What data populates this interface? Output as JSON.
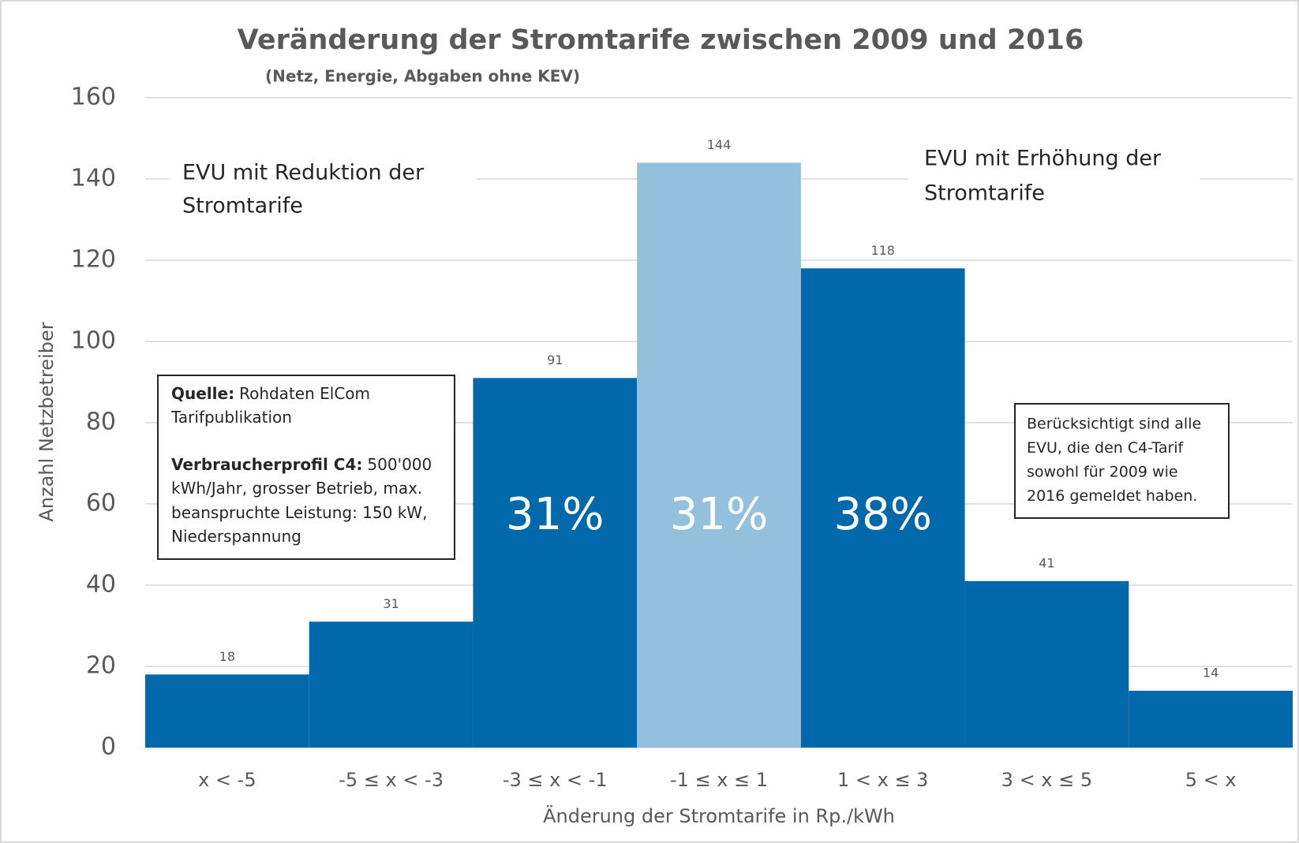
{
  "chart_data": {
    "type": "bar",
    "title": "Veränderung der Stromtarife zwischen 2009 und 2016",
    "subtitle": "(Netz, Energie, Abgaben ohne KEV)",
    "y_label": "Anzahl Netzbetreiber",
    "x_label": "Änderung der Stromtarife in Rp./kWh",
    "categories": [
      "x < -5",
      "-5 ≤ x < -3",
      "-3 ≤ x < -1",
      "-1 ≤ x ≤ 1",
      "1 < x  ≤ 3",
      "3 < x ≤ 5",
      "5 < x"
    ],
    "values": [
      18,
      31,
      91,
      144,
      118,
      41,
      14
    ],
    "colors": [
      "#0068ab",
      "#0068ab",
      "#0068ab",
      "#93c0dc",
      "#0068ab",
      "#0068ab",
      "#0068ab"
    ],
    "ylim": [
      0,
      160
    ],
    "yticks": [
      0,
      20,
      40,
      60,
      80,
      100,
      120,
      140,
      160
    ],
    "grid": true,
    "share_labels": [
      {
        "category": 2,
        "text": "31%"
      },
      {
        "category": 3,
        "text": "31%"
      },
      {
        "category": 4,
        "text": "38%"
      }
    ],
    "annotations": {
      "reduction": [
        "EVU mit Reduktion der",
        "Stromtarife"
      ],
      "increase": [
        "EVU mit Erhöhung der",
        "Stromtarife"
      ],
      "source": [
        {
          "bold": "Quelle:",
          "text": "Rohdaten ElCom"
        },
        {
          "text": "Tarifpublikation"
        },
        {
          "bold": "Verbraucherprofil C4:",
          "text": "500'000"
        },
        {
          "text": "kWh/Jahr, grosser Betrieb, max."
        },
        {
          "text": "beanspruchte Leistung: 150 kW,"
        },
        {
          "text": "Niederspannung"
        }
      ],
      "note": [
        "Berücksichtigt sind alle",
        "EVU, die den C4-Tarif",
        "sowohl für 2009 wie",
        "2016 gemeldet haben."
      ]
    }
  }
}
